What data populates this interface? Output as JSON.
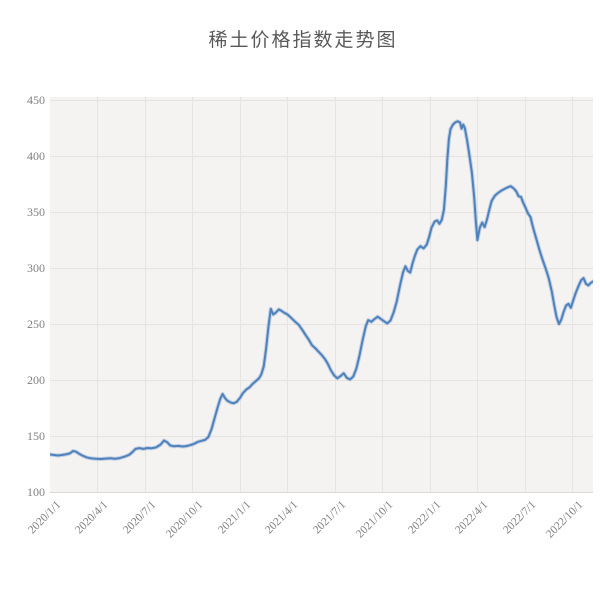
{
  "colors": {
    "line": "#4f81bd",
    "line_halo": "rgba(79,129,189,0.30)",
    "plot_bg": "#f4f3f2",
    "grid": "#e6e4e1",
    "tick_text": "#7f7f7f",
    "title_text": "#595959"
  },
  "chart_data": {
    "type": "line",
    "title": "稀土价格指数走势图",
    "xlabel": "",
    "ylabel": "",
    "grid": true,
    "legend_position": "none",
    "ylim": [
      100,
      450
    ],
    "y_ticks": [
      100,
      150,
      200,
      250,
      300,
      350,
      400,
      450
    ],
    "xlim_months": [
      0,
      34.3
    ],
    "x_tick_positions_months": [
      0,
      3,
      6,
      9,
      12,
      15,
      18,
      21,
      24,
      27,
      30,
      33
    ],
    "x_tick_labels": [
      "2020/1/1",
      "2020/4/1",
      "2020/7/1",
      "2020/10/1",
      "2021/1/1",
      "2021/4/1",
      "2021/7/1",
      "2021/10/1",
      "2022/1/1",
      "2022/4/1",
      "2022/7/1",
      "2022/10/1"
    ],
    "series": [
      {
        "points": [
          [
            0,
            133.5
          ],
          [
            0.25,
            133
          ],
          [
            0.5,
            132.6
          ],
          [
            0.75,
            133
          ],
          [
            1.0,
            133.6
          ],
          [
            1.25,
            134.5
          ],
          [
            1.45,
            136.6
          ],
          [
            1.65,
            136
          ],
          [
            1.85,
            134
          ],
          [
            2.05,
            132.5
          ],
          [
            2.3,
            131
          ],
          [
            2.6,
            130
          ],
          [
            2.9,
            129.7
          ],
          [
            3.2,
            129.5
          ],
          [
            3.5,
            129.8
          ],
          [
            3.8,
            130.2
          ],
          [
            4.1,
            129.6
          ],
          [
            4.4,
            130.3
          ],
          [
            4.7,
            131.5
          ],
          [
            5.0,
            133.2
          ],
          [
            5.2,
            135.5
          ],
          [
            5.4,
            138.5
          ],
          [
            5.65,
            139.2
          ],
          [
            5.9,
            138.5
          ],
          [
            6.15,
            139.3
          ],
          [
            6.4,
            139
          ],
          [
            6.7,
            139.8
          ],
          [
            7.0,
            142.5
          ],
          [
            7.2,
            146
          ],
          [
            7.4,
            144.5
          ],
          [
            7.6,
            141.5
          ],
          [
            7.85,
            140.8
          ],
          [
            8.1,
            141.2
          ],
          [
            8.35,
            140.6
          ],
          [
            8.6,
            141
          ],
          [
            8.85,
            141.8
          ],
          [
            9.1,
            143
          ],
          [
            9.35,
            144.8
          ],
          [
            9.6,
            145.8
          ],
          [
            9.8,
            146.5
          ],
          [
            10.0,
            149
          ],
          [
            10.2,
            156
          ],
          [
            10.4,
            166
          ],
          [
            10.6,
            176
          ],
          [
            10.75,
            183
          ],
          [
            10.9,
            187.5
          ],
          [
            11.05,
            184
          ],
          [
            11.2,
            181.5
          ],
          [
            11.4,
            180
          ],
          [
            11.6,
            179.2
          ],
          [
            11.8,
            180.5
          ],
          [
            12.0,
            184
          ],
          [
            12.2,
            188.5
          ],
          [
            12.4,
            191.5
          ],
          [
            12.6,
            193.5
          ],
          [
            12.8,
            196.5
          ],
          [
            13.0,
            199
          ],
          [
            13.2,
            201.5
          ],
          [
            13.35,
            205
          ],
          [
            13.5,
            212
          ],
          [
            13.65,
            228
          ],
          [
            13.8,
            248
          ],
          [
            13.95,
            263.5
          ],
          [
            14.1,
            258.5
          ],
          [
            14.25,
            260
          ],
          [
            14.45,
            263
          ],
          [
            14.6,
            262
          ],
          [
            14.8,
            260
          ],
          [
            15.0,
            258.5
          ],
          [
            15.2,
            256
          ],
          [
            15.45,
            252.5
          ],
          [
            15.7,
            249.5
          ],
          [
            15.95,
            244.5
          ],
          [
            16.15,
            240
          ],
          [
            16.35,
            236
          ],
          [
            16.55,
            231
          ],
          [
            16.75,
            228.5
          ],
          [
            16.95,
            225.5
          ],
          [
            17.15,
            222.5
          ],
          [
            17.35,
            219
          ],
          [
            17.55,
            214.5
          ],
          [
            17.75,
            208.5
          ],
          [
            17.95,
            204
          ],
          [
            18.15,
            201.5
          ],
          [
            18.35,
            203.5
          ],
          [
            18.55,
            206
          ],
          [
            18.75,
            202
          ],
          [
            18.95,
            200.5
          ],
          [
            19.15,
            203
          ],
          [
            19.35,
            210
          ],
          [
            19.55,
            222
          ],
          [
            19.75,
            236
          ],
          [
            19.95,
            248
          ],
          [
            20.1,
            253.5
          ],
          [
            20.3,
            252
          ],
          [
            20.5,
            254.5
          ],
          [
            20.7,
            256.5
          ],
          [
            20.9,
            254.5
          ],
          [
            21.1,
            252.5
          ],
          [
            21.3,
            250.5
          ],
          [
            21.5,
            253
          ],
          [
            21.7,
            260
          ],
          [
            21.9,
            270
          ],
          [
            22.1,
            284
          ],
          [
            22.3,
            296
          ],
          [
            22.45,
            301.5
          ],
          [
            22.6,
            297.5
          ],
          [
            22.75,
            296
          ],
          [
            22.9,
            304
          ],
          [
            23.05,
            311
          ],
          [
            23.2,
            316.5
          ],
          [
            23.4,
            319.5
          ],
          [
            23.6,
            317.5
          ],
          [
            23.8,
            321
          ],
          [
            23.95,
            328
          ],
          [
            24.1,
            336
          ],
          [
            24.3,
            341.5
          ],
          [
            24.45,
            342.5
          ],
          [
            24.6,
            339.5
          ],
          [
            24.75,
            343
          ],
          [
            24.88,
            352
          ],
          [
            25.0,
            373
          ],
          [
            25.1,
            398
          ],
          [
            25.2,
            415
          ],
          [
            25.3,
            424
          ],
          [
            25.45,
            428
          ],
          [
            25.6,
            430
          ],
          [
            25.75,
            431
          ],
          [
            25.9,
            430
          ],
          [
            26.0,
            424.5
          ],
          [
            26.1,
            428
          ],
          [
            26.2,
            425
          ],
          [
            26.35,
            414
          ],
          [
            26.5,
            400
          ],
          [
            26.65,
            385
          ],
          [
            26.8,
            362
          ],
          [
            26.9,
            341
          ],
          [
            27.0,
            325
          ],
          [
            27.15,
            336
          ],
          [
            27.3,
            340.5
          ],
          [
            27.45,
            336.5
          ],
          [
            27.6,
            343
          ],
          [
            27.75,
            352
          ],
          [
            27.9,
            360
          ],
          [
            28.1,
            364.5
          ],
          [
            28.3,
            367
          ],
          [
            28.5,
            369
          ],
          [
            28.7,
            370.5
          ],
          [
            28.9,
            372
          ],
          [
            29.1,
            373
          ],
          [
            29.3,
            371
          ],
          [
            29.45,
            368.5
          ],
          [
            29.6,
            364
          ],
          [
            29.75,
            363.5
          ],
          [
            29.9,
            358
          ],
          [
            30.05,
            353.5
          ],
          [
            30.2,
            348.5
          ],
          [
            30.35,
            345.5
          ],
          [
            30.5,
            337
          ],
          [
            30.7,
            327
          ],
          [
            30.9,
            317
          ],
          [
            31.1,
            308
          ],
          [
            31.3,
            300
          ],
          [
            31.5,
            291
          ],
          [
            31.7,
            279
          ],
          [
            31.85,
            267
          ],
          [
            32.0,
            256
          ],
          [
            32.15,
            250
          ],
          [
            32.3,
            254
          ],
          [
            32.45,
            261
          ],
          [
            32.6,
            266.5
          ],
          [
            32.75,
            268
          ],
          [
            32.9,
            264.5
          ],
          [
            33.05,
            271
          ],
          [
            33.2,
            277.5
          ],
          [
            33.4,
            284.5
          ],
          [
            33.55,
            289
          ],
          [
            33.7,
            291
          ],
          [
            33.85,
            286
          ],
          [
            34.0,
            284.5
          ],
          [
            34.15,
            286.5
          ],
          [
            34.3,
            288
          ]
        ]
      }
    ]
  }
}
